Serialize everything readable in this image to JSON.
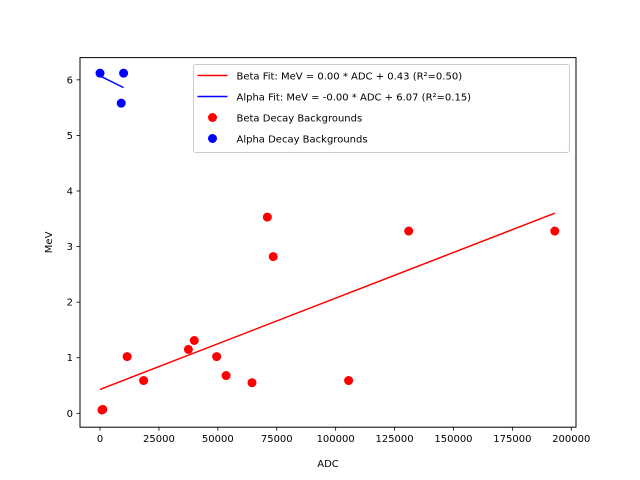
{
  "chart_data": {
    "type": "scatter",
    "title": "",
    "xlabel": "ADC",
    "ylabel": "MeV",
    "xlim": [
      -8500,
      202000
    ],
    "ylim": [
      -0.25,
      6.4
    ],
    "xticks": [
      0,
      25000,
      50000,
      75000,
      100000,
      125000,
      150000,
      175000,
      200000
    ],
    "yticks": [
      0,
      1,
      2,
      3,
      4,
      5,
      6
    ],
    "grid": false,
    "legend_position": "top-right",
    "series": [
      {
        "name": "Beta Fit: MeV = 0.00 * ADC + 0.43 (R²=0.50)",
        "kind": "line",
        "color": "#ff0000",
        "x": [
          0,
          193000
        ],
        "y": [
          0.43,
          3.6
        ]
      },
      {
        "name": "Alpha Fit: MeV = -0.00 * ADC + 6.07 (R²=0.15)",
        "kind": "line",
        "color": "#0000ff",
        "x": [
          0,
          10000
        ],
        "y": [
          6.07,
          5.86
        ]
      },
      {
        "name": "Beta Decay Backgrounds",
        "kind": "scatter",
        "color": "#ff0000",
        "x": [
          800,
          1200,
          11500,
          18500,
          37500,
          40000,
          49500,
          53500,
          64500,
          71000,
          73500,
          105500,
          131000,
          193000
        ],
        "y": [
          0.06,
          0.07,
          1.02,
          0.59,
          1.15,
          1.31,
          1.02,
          0.68,
          0.55,
          3.53,
          2.82,
          0.59,
          3.28,
          3.28
        ]
      },
      {
        "name": "Alpha Decay Backgrounds",
        "kind": "scatter",
        "color": "#0000ff",
        "x": [
          0,
          9000,
          10000
        ],
        "y": [
          6.12,
          5.58,
          6.12
        ]
      }
    ]
  }
}
